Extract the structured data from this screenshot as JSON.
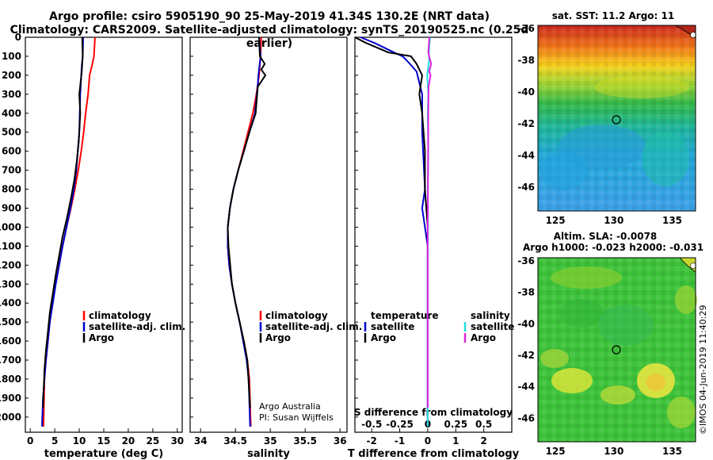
{
  "title": {
    "line1": "Argo profile: csiro 5905190_90 25-May-2019 41.34S 130.2E (NRT data)",
    "line2": "Climatology: CARS2009. Satellite-adjusted climatology: synTS_20190525.nc (0.25d earlier)"
  },
  "colors": {
    "climatology": "#ff0000",
    "satellite": "#0000cc",
    "argo": "#000000",
    "sal_satellite": "#22dddd",
    "sal_argo": "#dd22dd"
  },
  "depth_axis": {
    "ticks": [
      "0",
      "100",
      "200",
      "300",
      "400",
      "500",
      "600",
      "700",
      "800",
      "900",
      "1000",
      "1100",
      "1200",
      "1300",
      "1400",
      "1500",
      "1600",
      "1700",
      "1800",
      "1900",
      "2000"
    ],
    "range": [
      0,
      2080
    ]
  },
  "chart_data": [
    {
      "type": "line",
      "xlabel": "temperature (deg C)",
      "xlim": [
        -1,
        31
      ],
      "xticks": [
        "0",
        "5",
        "10",
        "15",
        "20",
        "25",
        "30"
      ],
      "ylim": [
        0,
        2080
      ],
      "y_inverted": true,
      "legend": [
        "climatology",
        "satellite-adj. clim.",
        "Argo"
      ],
      "series": [
        {
          "name": "climatology",
          "color": "#ff0000",
          "x": [
            13.2,
            13.0,
            12.6,
            12.1,
            11.8,
            11.3,
            10.9,
            10.4,
            9.8,
            9.1,
            8.3,
            7.4,
            6.6,
            5.8,
            5.1,
            4.5,
            4.0,
            3.6,
            3.2,
            2.9,
            2.7
          ],
          "y": [
            0,
            100,
            150,
            200,
            300,
            400,
            500,
            600,
            700,
            800,
            900,
            1000,
            1100,
            1200,
            1300,
            1400,
            1500,
            1600,
            1700,
            1800,
            2050
          ]
        },
        {
          "name": "satellite-adj. clim.",
          "color": "#0000cc",
          "x": [
            10.8,
            10.7,
            10.5,
            10.2,
            10.0,
            9.7,
            9.4,
            8.9,
            8.2,
            7.4,
            6.6,
            5.9,
            5.2,
            4.6,
            4.0,
            3.6,
            3.2,
            2.9,
            2.6,
            2.4
          ],
          "y": [
            0,
            100,
            150,
            300,
            500,
            600,
            700,
            800,
            900,
            1000,
            1100,
            1200,
            1300,
            1400,
            1500,
            1600,
            1700,
            1800,
            1900,
            2050
          ]
        },
        {
          "name": "Argo",
          "color": "#000000",
          "x": [
            10.6,
            10.7,
            10.5,
            10.0,
            10.2,
            9.9,
            9.5,
            9.0,
            8.3,
            7.5,
            6.6,
            5.9,
            5.2,
            4.6,
            4.0,
            3.6,
            3.2,
            2.9,
            2.6
          ],
          "y": [
            0,
            100,
            180,
            300,
            400,
            550,
            650,
            750,
            850,
            950,
            1050,
            1150,
            1250,
            1350,
            1450,
            1550,
            1650,
            1750,
            1950
          ]
        }
      ]
    },
    {
      "type": "line",
      "xlabel": "salinity",
      "xlim": [
        33.85,
        36.1
      ],
      "xticks": [
        "34",
        "34.5",
        "35",
        "35.5",
        "36"
      ],
      "ylim": [
        0,
        2080
      ],
      "y_inverted": true,
      "legend": [
        "climatology",
        "satellite-adj. clim.",
        "Argo"
      ],
      "series": [
        {
          "name": "climatology",
          "color": "#ff0000",
          "x": [
            34.87,
            34.86,
            34.84,
            34.8,
            34.75,
            34.68,
            34.61,
            34.54,
            34.47,
            34.42,
            34.39,
            34.39,
            34.41,
            34.45,
            34.5,
            34.56,
            34.62,
            34.67,
            34.7,
            34.72
          ],
          "y": [
            0,
            100,
            200,
            300,
            400,
            500,
            600,
            700,
            800,
            900,
            1000,
            1100,
            1200,
            1300,
            1400,
            1500,
            1600,
            1700,
            1800,
            2050
          ]
        },
        {
          "name": "satellite-adj. clim.",
          "color": "#0000cc",
          "x": [
            34.84,
            34.86,
            34.83,
            34.82,
            34.78,
            34.7,
            34.62,
            34.54,
            34.47,
            34.42,
            34.39,
            34.39,
            34.41,
            34.45,
            34.5,
            34.56,
            34.61,
            34.66,
            34.69,
            34.71
          ],
          "y": [
            0,
            100,
            200,
            250,
            400,
            500,
            600,
            700,
            800,
            900,
            1000,
            1100,
            1200,
            1300,
            1400,
            1500,
            1600,
            1700,
            1800,
            2050
          ]
        },
        {
          "name": "Argo",
          "color": "#000000",
          "x": [
            34.84,
            34.85,
            34.92,
            34.87,
            34.93,
            34.82,
            34.79,
            34.7,
            34.62,
            34.54,
            34.47,
            34.42,
            34.39,
            34.4,
            34.45,
            34.5,
            34.56,
            34.62,
            34.67,
            34.71
          ],
          "y": [
            0,
            100,
            140,
            170,
            200,
            260,
            400,
            500,
            600,
            700,
            800,
            900,
            1000,
            1100,
            1300,
            1400,
            1500,
            1600,
            1700,
            1950
          ]
        }
      ]
    },
    {
      "type": "line",
      "xlabel": "T difference from climatology",
      "xlabel_top": "S difference from climatology",
      "xlim": [
        -2.6,
        3.0
      ],
      "xticks": [
        "-2",
        "-1",
        "0",
        "1",
        "2"
      ],
      "xticks_top": [
        "-0.5",
        "-0.25",
        "0",
        "0.25",
        "0.5"
      ],
      "ylim": [
        0,
        2080
      ],
      "y_inverted": true,
      "legend_left_title": "temperature",
      "legend_right_title": "salinity",
      "legend": [
        "satellite",
        "Argo",
        "satellite",
        "Argo"
      ],
      "series": [
        {
          "name": "satellite",
          "group": "temperature",
          "color": "#0000cc",
          "x": [
            -2.4,
            -1.9,
            -1.2,
            -0.9,
            -0.7,
            -0.4,
            -0.2,
            -0.2,
            -0.1,
            -0.2,
            -0.1,
            0.0,
            0.0,
            0.0,
            0.0
          ],
          "y": [
            0,
            30,
            80,
            100,
            130,
            180,
            300,
            500,
            800,
            900,
            1000,
            1100,
            1300,
            1600,
            2050
          ]
        },
        {
          "name": "Argo",
          "group": "temperature",
          "color": "#000000",
          "x": [
            -2.6,
            -2.2,
            -1.4,
            -0.6,
            -0.4,
            -0.2,
            -0.3,
            -0.2,
            -0.1,
            -0.1,
            0.0,
            0.0,
            0.0
          ],
          "y": [
            0,
            30,
            80,
            100,
            140,
            200,
            300,
            400,
            600,
            800,
            1000,
            1400,
            1950
          ]
        },
        {
          "name": "satellite",
          "group": "salinity",
          "color": "#22dddd",
          "x": [
            0.08,
            0.04,
            0.05,
            -0.02,
            0.02,
            0.0,
            0.02,
            0.0,
            0.01,
            0.0,
            0.0,
            0.0,
            0.0
          ],
          "y": [
            0,
            80,
            120,
            200,
            300,
            400,
            600,
            800,
            1000,
            1200,
            1400,
            1700,
            2050
          ]
        },
        {
          "name": "Argo",
          "group": "salinity",
          "color": "#dd22dd",
          "x": [
            0.06,
            0.02,
            0.12,
            0.05,
            0.1,
            0.03,
            0.02,
            0.01,
            0.0,
            0.0,
            0.0
          ],
          "y": [
            0,
            80,
            140,
            180,
            200,
            260,
            400,
            700,
            1000,
            1400,
            1950
          ]
        }
      ]
    },
    {
      "type": "heatmap",
      "title": "sat. SST: 11.2 Argo: 11",
      "xticks": [
        "125",
        "130",
        "135"
      ],
      "yticks": [
        "-36",
        "-38",
        "-40",
        "-42",
        "-44",
        "-46"
      ],
      "xlim": [
        123.5,
        137
      ],
      "ylim": [
        -47.5,
        -35.8
      ],
      "marker": {
        "lon": 130.2,
        "lat": -41.34
      }
    },
    {
      "type": "heatmap",
      "title": "Altim. SLA: -0.0078",
      "subtitle": "Argo h1000: -0.023 h2000: -0.031",
      "xticks": [
        "125",
        "130",
        "135"
      ],
      "yticks": [
        "-36",
        "-38",
        "-40",
        "-42",
        "-44",
        "-46"
      ],
      "xlim": [
        123.5,
        137
      ],
      "ylim": [
        -47.5,
        -35.8
      ],
      "marker": {
        "lon": 130.2,
        "lat": -41.34
      }
    }
  ],
  "credits": {
    "line1": "Argo Australia",
    "line2": "PI: Susan Wijffels",
    "imos": "©IMOS 04-Jun-2019 11:40:29"
  }
}
